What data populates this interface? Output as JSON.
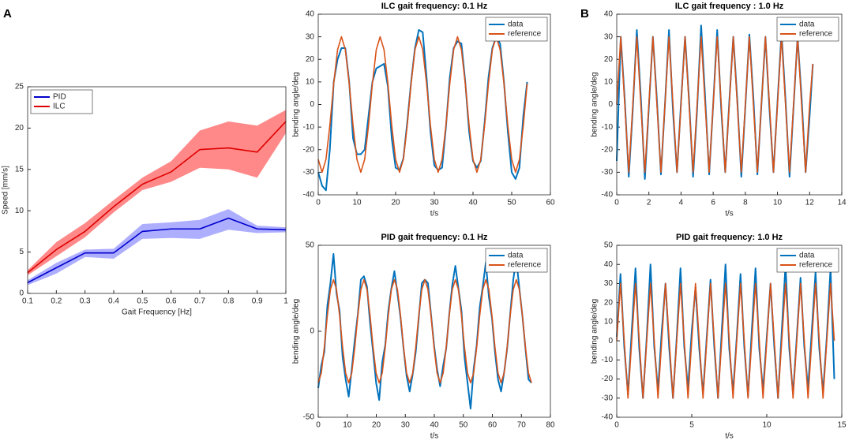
{
  "chart_data": [
    {
      "type": "line",
      "panel_label": "A",
      "xlabel": "Gait Frequency [Hz]",
      "ylabel": "Speed [mm/s]",
      "legend": "northwest",
      "x": [
        0.1,
        0.2,
        0.3,
        0.4,
        0.5,
        0.6,
        0.7,
        0.8,
        0.9,
        1
      ],
      "xlim": [
        0.1,
        1
      ],
      "xticks": [
        0.1,
        0.2,
        0.3,
        0.4,
        0.5,
        0.6,
        0.7,
        0.8,
        0.9,
        1
      ],
      "ylim": [
        0,
        25
      ],
      "yticks": [
        0,
        5,
        10,
        15,
        20,
        25
      ],
      "series": [
        {
          "name": "PID",
          "color": "#0000cc",
          "band_color": "#9a9aff",
          "values": [
            1.3,
            3.1,
            4.9,
            4.9,
            7.5,
            7.8,
            7.8,
            9.1,
            7.8,
            7.7
          ],
          "low": [
            1.0,
            2.4,
            4.4,
            4.2,
            6.6,
            6.7,
            6.6,
            7.7,
            7.3,
            7.4
          ],
          "high": [
            1.6,
            3.7,
            5.3,
            5.4,
            8.4,
            8.6,
            8.9,
            10.2,
            8.2,
            8.0
          ]
        },
        {
          "name": "ILC",
          "color": "#dd0000",
          "band_color": "#ff6b6b",
          "values": [
            2.5,
            5.3,
            7.5,
            10.5,
            13.2,
            14.7,
            17.4,
            17.6,
            17.1,
            20.8
          ],
          "low": [
            2.2,
            4.5,
            6.8,
            9.8,
            12.5,
            13.5,
            15.2,
            15.0,
            14.0,
            19.4
          ],
          "high": [
            2.8,
            6.2,
            8.5,
            11.3,
            14.0,
            16.0,
            19.7,
            20.8,
            20.3,
            22.2
          ]
        }
      ]
    },
    {
      "type": "line",
      "title": "ILC gait frequency: 0.1 Hz",
      "xlabel": "t/s",
      "ylabel": "bending angle/deg",
      "legend": "northeast",
      "x": [
        0,
        1,
        2,
        3,
        4,
        5,
        6,
        7,
        8,
        9,
        10,
        11,
        12,
        13,
        14,
        15,
        16,
        17,
        18,
        19,
        20,
        21,
        22,
        23,
        24,
        25,
        26,
        27,
        28,
        29,
        30,
        31,
        32,
        33,
        34,
        35,
        36,
        37,
        38,
        39,
        40,
        41,
        42,
        43,
        44,
        45,
        46,
        47,
        48,
        49,
        50,
        51,
        52,
        53,
        54
      ],
      "xlim": [
        0,
        60
      ],
      "xticks": [
        0,
        10,
        20,
        30,
        40,
        50,
        60
      ],
      "ylim": [
        -40,
        40
      ],
      "yticks": [
        -40,
        -30,
        -20,
        -10,
        0,
        10,
        20,
        30,
        40
      ],
      "series": [
        {
          "name": "data",
          "color": "#0072bd",
          "width": 2,
          "values": [
            -30,
            -36,
            -38,
            -20,
            10,
            20,
            25,
            25,
            10,
            -15,
            -22,
            -22,
            -20,
            -5,
            10,
            16,
            17,
            18,
            8,
            -15,
            -28,
            -29,
            -24,
            -8,
            10,
            25,
            33,
            32,
            12,
            -12,
            -27,
            -29,
            -28,
            -10,
            12,
            25,
            28,
            27,
            10,
            -12,
            -25,
            -28,
            -25,
            -8,
            12,
            25,
            30,
            27,
            10,
            -12,
            -30,
            -33,
            -28,
            -5,
            10
          ]
        },
        {
          "name": "reference",
          "color": "#d95319",
          "width": 1.6,
          "values": [
            -24.3,
            -30,
            -24.3,
            -9.3,
            9.3,
            24.3,
            30,
            24.3,
            9.3,
            -9.3,
            -24.3,
            -30,
            -24.3,
            -9.3,
            9.3,
            24.3,
            30,
            24.3,
            9.3,
            -9.3,
            -24.3,
            -30,
            -24.3,
            -9.3,
            9.3,
            24.3,
            30,
            24.3,
            9.3,
            -9.3,
            -24.3,
            -30,
            -24.3,
            -9.3,
            9.3,
            24.3,
            30,
            24.3,
            9.3,
            -9.3,
            -24.3,
            -30,
            -24.3,
            -9.3,
            9.3,
            24.3,
            30,
            24.3,
            9.3,
            -9.3,
            -24.3,
            -30,
            -24.3,
            -9.3,
            9.3
          ]
        }
      ]
    },
    {
      "type": "line",
      "title": "PID gait frequency: 0.1 Hz",
      "xlabel": "t/s",
      "ylabel": "bending angle/deg",
      "legend": "northeast",
      "x": [
        0,
        1.05,
        2.1,
        3.15,
        4.2,
        5.25,
        6.3,
        7.35,
        8.4,
        9.45,
        10.5,
        11.55,
        12.6,
        13.65,
        14.7,
        15.75,
        16.8,
        17.85,
        18.9,
        19.95,
        21,
        22.05,
        23.1,
        24.15,
        25.2,
        26.25,
        27.3,
        28.35,
        29.4,
        30.45,
        31.5,
        32.55,
        33.6,
        34.65,
        35.7,
        36.75,
        37.8,
        38.85,
        39.9,
        40.95,
        42,
        43.05,
        44.1,
        45.15,
        46.2,
        47.25,
        48.3,
        49.35,
        50.4,
        51.45,
        52.5,
        53.55,
        54.6,
        55.65,
        56.7,
        57.75,
        58.8,
        59.85,
        60.9,
        61.95,
        63,
        64.05,
        65.1,
        66.15,
        67.2,
        68.25,
        69.3,
        70.35,
        71.4,
        72.45,
        73.5
      ],
      "xlim": [
        0,
        80
      ],
      "xticks": [
        0,
        10,
        20,
        30,
        40,
        50,
        60,
        70,
        80
      ],
      "ylim": [
        -50,
        50
      ],
      "yticks": [
        -50,
        0,
        50
      ],
      "series": [
        {
          "name": "data",
          "color": "#0072bd",
          "width": 2,
          "values": [
            -33,
            -20,
            -12,
            15,
            28,
            45,
            22,
            12,
            -15,
            -28,
            -38,
            -22,
            -5,
            10,
            30,
            32,
            26,
            5,
            -12,
            -30,
            -40,
            -18,
            -8,
            12,
            25,
            35,
            22,
            8,
            -10,
            -26,
            -35,
            -25,
            -12,
            8,
            28,
            30,
            28,
            10,
            -8,
            -22,
            -32,
            -20,
            -10,
            10,
            27,
            38,
            25,
            12,
            -15,
            -30,
            -45,
            -22,
            -8,
            14,
            26,
            40,
            20,
            8,
            -12,
            -28,
            -35,
            -24,
            -10,
            10,
            30,
            42,
            25,
            9,
            -10,
            -28,
            -30
          ]
        },
        {
          "name": "reference",
          "color": "#d95319",
          "width": 1.6,
          "values": [
            -30,
            -24.3,
            -9.3,
            9.3,
            24.3,
            30,
            24.3,
            9.3,
            -9.3,
            -24.3,
            -30,
            -24.3,
            -9.3,
            9.3,
            24.3,
            30,
            24.3,
            9.3,
            -9.3,
            -24.3,
            -30,
            -24.3,
            -9.3,
            9.3,
            24.3,
            30,
            24.3,
            9.3,
            -9.3,
            -24.3,
            -30,
            -24.3,
            -9.3,
            9.3,
            24.3,
            30,
            24.3,
            9.3,
            -9.3,
            -24.3,
            -30,
            -24.3,
            -9.3,
            9.3,
            24.3,
            30,
            24.3,
            9.3,
            -9.3,
            -24.3,
            -30,
            -24.3,
            -9.3,
            9.3,
            24.3,
            30,
            24.3,
            9.3,
            -9.3,
            -24.3,
            -30,
            -24.3,
            -9.3,
            9.3,
            24.3,
            30,
            24.3,
            9.3,
            -9.3,
            -24.3,
            -30
          ]
        }
      ]
    },
    {
      "type": "line",
      "panel_label": "B",
      "title": "ILC gait frequency : 1.0 Hz",
      "xlabel": "t/s",
      "ylabel": "bending angle/deg",
      "legend": "northeast",
      "x": [
        0,
        0.25,
        0.5,
        0.75,
        1,
        1.25,
        1.5,
        1.75,
        2,
        2.25,
        2.5,
        2.75,
        3,
        3.25,
        3.5,
        3.75,
        4,
        4.25,
        4.5,
        4.75,
        5,
        5.25,
        5.5,
        5.75,
        6,
        6.25,
        6.5,
        6.75,
        7,
        7.25,
        7.5,
        7.75,
        8,
        8.25,
        8.5,
        8.75,
        9,
        9.25,
        9.5,
        9.75,
        10,
        10.25,
        10.5,
        10.75,
        11,
        11.25,
        11.5,
        11.75,
        12,
        12.2
      ],
      "xlim": [
        0,
        14
      ],
      "xticks": [
        0,
        2,
        4,
        6,
        8,
        10,
        12,
        14
      ],
      "ylim": [
        -40,
        40
      ],
      "yticks": [
        -40,
        -30,
        -20,
        -10,
        0,
        10,
        20,
        30,
        40
      ],
      "series": [
        {
          "name": "data",
          "color": "#0072bd",
          "width": 2,
          "values": [
            -25,
            30,
            2,
            -32,
            -2,
            33,
            3,
            -33,
            -1,
            30,
            2,
            -31,
            0,
            33,
            -3,
            -30,
            1,
            30,
            2,
            -32,
            -2,
            35,
            3,
            -31,
            0,
            33,
            -2,
            -30,
            1,
            30,
            2,
            -32,
            -1,
            31,
            3,
            -31,
            0,
            30,
            -2,
            -30,
            1,
            32,
            2,
            -32,
            -1,
            30,
            3,
            -30,
            -5,
            18
          ]
        },
        {
          "name": "reference",
          "color": "#d95319",
          "width": 1.6,
          "values": [
            0,
            30,
            0,
            -30,
            0,
            30,
            0,
            -30,
            0,
            30,
            0,
            -30,
            0,
            30,
            0,
            -30,
            0,
            30,
            0,
            -30,
            0,
            30,
            0,
            -30,
            0,
            30,
            0,
            -30,
            0,
            30,
            0,
            -30,
            0,
            30,
            0,
            -30,
            0,
            30,
            0,
            -30,
            0,
            30,
            0,
            -30,
            0,
            30,
            0,
            -30,
            0,
            18
          ]
        }
      ]
    },
    {
      "type": "line",
      "title": "PID gait frequency: 1.0 Hz",
      "xlabel": "t/s",
      "ylabel": "bending angle/deg",
      "legend": "northeast",
      "x": [
        0,
        0.25,
        0.5,
        0.75,
        1,
        1.25,
        1.5,
        1.75,
        2,
        2.25,
        2.5,
        2.75,
        3,
        3.25,
        3.5,
        3.75,
        4,
        4.25,
        4.5,
        4.75,
        5,
        5.25,
        5.5,
        5.75,
        6,
        6.25,
        6.5,
        6.75,
        7,
        7.25,
        7.5,
        7.75,
        8,
        8.25,
        8.5,
        8.75,
        9,
        9.25,
        9.5,
        9.75,
        10,
        10.25,
        10.5,
        10.75,
        11,
        11.25,
        11.5,
        11.75,
        12,
        12.25,
        12.5,
        12.75,
        13,
        13.25,
        13.5,
        13.75,
        14,
        14.25,
        14.5
      ],
      "xlim": [
        0,
        15
      ],
      "xticks": [
        0,
        5,
        10,
        15
      ],
      "ylim": [
        -40,
        50
      ],
      "yticks": [
        -40,
        -30,
        -20,
        -10,
        0,
        10,
        20,
        30,
        40,
        50
      ],
      "series": [
        {
          "name": "data",
          "color": "#0072bd",
          "width": 2,
          "values": [
            2,
            35,
            -3,
            -28,
            5,
            38,
            -4,
            -30,
            2,
            40,
            -3,
            -26,
            5,
            30,
            -4,
            -30,
            2,
            38,
            -3,
            -25,
            5,
            28,
            -4,
            -28,
            2,
            32,
            -3,
            -30,
            5,
            40,
            -4,
            -27,
            2,
            35,
            -3,
            -29,
            5,
            38,
            -4,
            -26,
            2,
            30,
            -3,
            -30,
            5,
            40,
            -4,
            -28,
            2,
            33,
            -3,
            -25,
            5,
            36,
            -4,
            -27,
            2,
            38,
            -20
          ]
        },
        {
          "name": "reference",
          "color": "#d95319",
          "width": 1.6,
          "values": [
            0,
            30,
            0,
            -30,
            0,
            30,
            0,
            -30,
            0,
            30,
            0,
            -30,
            0,
            30,
            0,
            -30,
            0,
            30,
            0,
            -30,
            0,
            30,
            0,
            -30,
            0,
            30,
            0,
            -30,
            0,
            30,
            0,
            -30,
            0,
            30,
            0,
            -30,
            0,
            30,
            0,
            -30,
            0,
            30,
            0,
            -30,
            0,
            30,
            0,
            -30,
            0,
            30,
            0,
            -30,
            0,
            30,
            0,
            -30,
            0,
            30,
            0
          ]
        }
      ]
    }
  ]
}
